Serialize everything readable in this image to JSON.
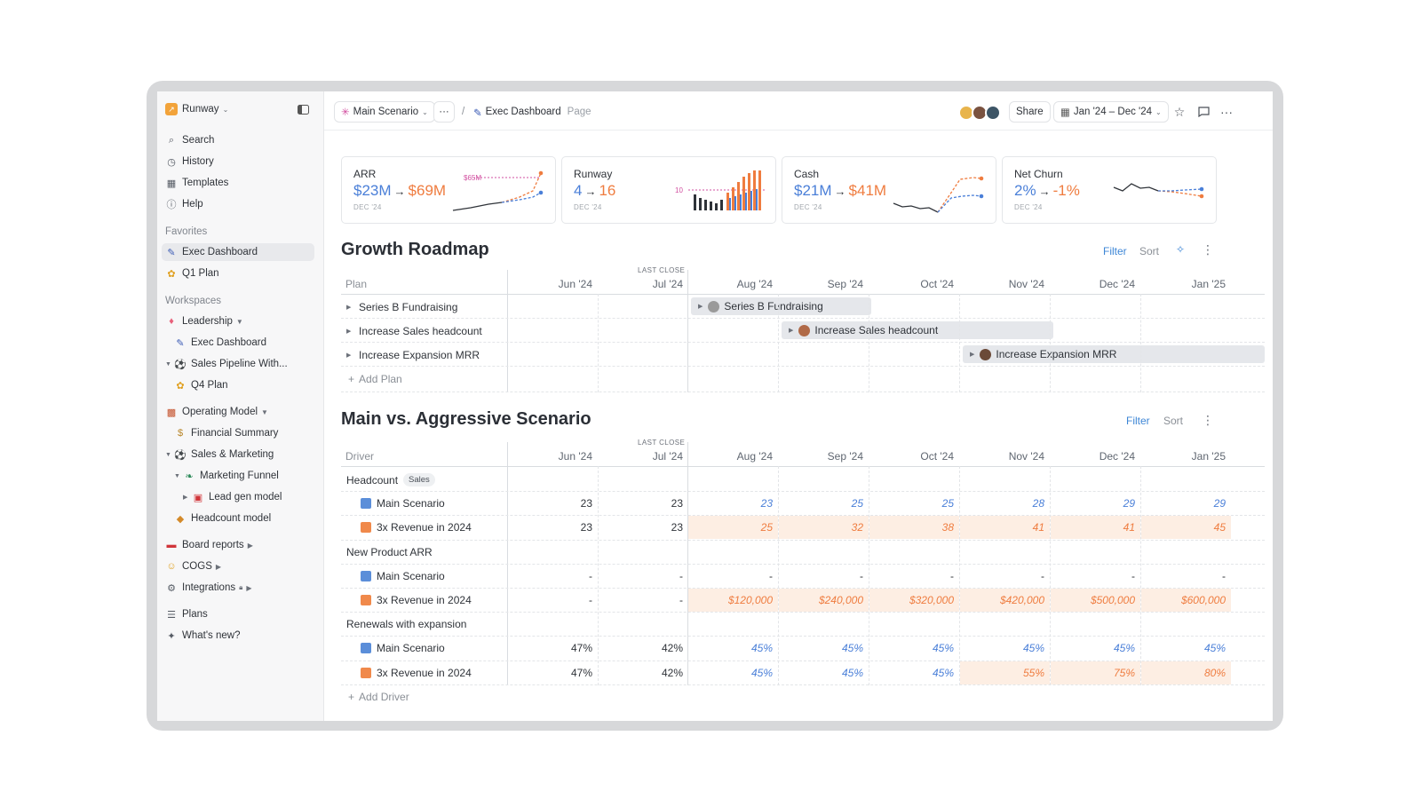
{
  "sidebar": {
    "workspace": "Runway",
    "nav": [
      "Search",
      "History",
      "Templates",
      "Help"
    ],
    "favorites_heading": "Favorites",
    "favorites": [
      "Exec Dashboard",
      "Q1 Plan"
    ],
    "workspaces_heading": "Workspaces",
    "tree": [
      "Leadership",
      "Exec Dashboard",
      "Sales Pipeline With...",
      "Q4 Plan",
      "Operating Model",
      "Financial Summary",
      "Sales & Marketing",
      "Marketing Funnel",
      "Lead gen model",
      "Headcount model",
      "Board reports",
      "COGS",
      "Integrations"
    ],
    "footer": [
      "Plans",
      "What's new?"
    ]
  },
  "topbar": {
    "scenario": "Main Scenario",
    "more": "···",
    "separator": "/",
    "page_name": "Exec Dashboard",
    "page_type": "Page",
    "share": "Share",
    "date_range": "Jan '24 – Dec '24"
  },
  "kpis": [
    {
      "title": "ARR",
      "from": "$23M",
      "to": "$69M",
      "date": "DEC '24",
      "marker": "$65M"
    },
    {
      "title": "Runway",
      "from": "4",
      "to": "16",
      "date": "DEC '24",
      "marker": "10"
    },
    {
      "title": "Cash",
      "from": "$21M",
      "to": "$41M",
      "date": "DEC '24"
    },
    {
      "title": "Net Churn",
      "from": "2%",
      "to": "-1%",
      "date": "DEC '24"
    }
  ],
  "arrow": "→",
  "months": [
    "Jun '24",
    "Jul '24",
    "Aug '24",
    "Sep '24",
    "Oct '24",
    "Nov '24",
    "Dec '24",
    "Jan '25"
  ],
  "last_close": "LAST CLOSE",
  "roadmap": {
    "title": "Growth Roadmap",
    "filter": "Filter",
    "sort": "Sort",
    "col_header": "Plan",
    "plans": [
      "Series B Fundraising",
      "Increase Sales headcount",
      "Increase Expansion MRR"
    ],
    "add": "Add Plan"
  },
  "scenario": {
    "title": "Main vs. Aggressive Scenario",
    "filter": "Filter",
    "sort": "Sort",
    "col_header": "Driver",
    "add": "Add Driver",
    "tag": "Sales",
    "groups": [
      {
        "name": "Headcount",
        "rows": [
          {
            "name": "Main Scenario",
            "values": [
              "23",
              "23",
              "23",
              "25",
              "25",
              "28",
              "29",
              "29"
            ]
          },
          {
            "name": "3x Revenue in 2024",
            "values": [
              "23",
              "23",
              "25",
              "32",
              "38",
              "41",
              "41",
              "45"
            ]
          }
        ]
      },
      {
        "name": "New Product ARR",
        "rows": [
          {
            "name": "Main Scenario",
            "values": [
              "-",
              "-",
              "-",
              "-",
              "-",
              "-",
              "-",
              "-"
            ]
          },
          {
            "name": "3x Revenue in 2024",
            "values": [
              "-",
              "-",
              "$120,000",
              "$240,000",
              "$320,000",
              "$420,000",
              "$500,000",
              "$600,000"
            ]
          }
        ]
      },
      {
        "name": "Renewals with expansion",
        "rows": [
          {
            "name": "Main Scenario",
            "values": [
              "47%",
              "42%",
              "45%",
              "45%",
              "45%",
              "45%",
              "45%",
              "45%"
            ]
          },
          {
            "name": "3x Revenue in 2024",
            "values": [
              "47%",
              "42%",
              "45%",
              "45%",
              "45%",
              "55%",
              "75%",
              "80%"
            ]
          }
        ]
      }
    ]
  },
  "colors": {
    "actual_blue": "#4a7fd8",
    "forecast_orange": "#ef7c3f",
    "accent": "#3d86d6"
  }
}
